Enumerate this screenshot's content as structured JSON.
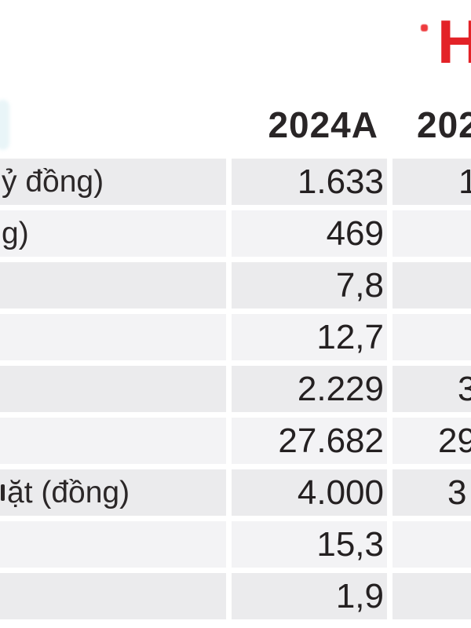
{
  "page": {
    "logo_fragment": "H",
    "accent_red": "#e32227",
    "row_gray": "#ebebed",
    "text_dark": "#272324"
  },
  "table": {
    "header": {
      "col1": "2024A",
      "col2": "202"
    },
    "rows": [
      {
        "label": "ỷ đồng)",
        "v1": "1.633",
        "v2": "1"
      },
      {
        "label": "g)",
        "v1": "469",
        "v2": ""
      },
      {
        "label": "",
        "v1": "7,8",
        "v2": ""
      },
      {
        "label": "",
        "v1": "12,7",
        "v2": ""
      },
      {
        "label": "",
        "v1": "2.229",
        "v2": "3"
      },
      {
        "label": "",
        "v1": "27.682",
        "v2": "29"
      },
      {
        "label": "ặt (đồng)",
        "v1": "4.000",
        "v2": "3"
      },
      {
        "label": "",
        "v1": "15,3",
        "v2": ""
      },
      {
        "label": "",
        "v1": "1,9",
        "v2": ""
      }
    ]
  }
}
